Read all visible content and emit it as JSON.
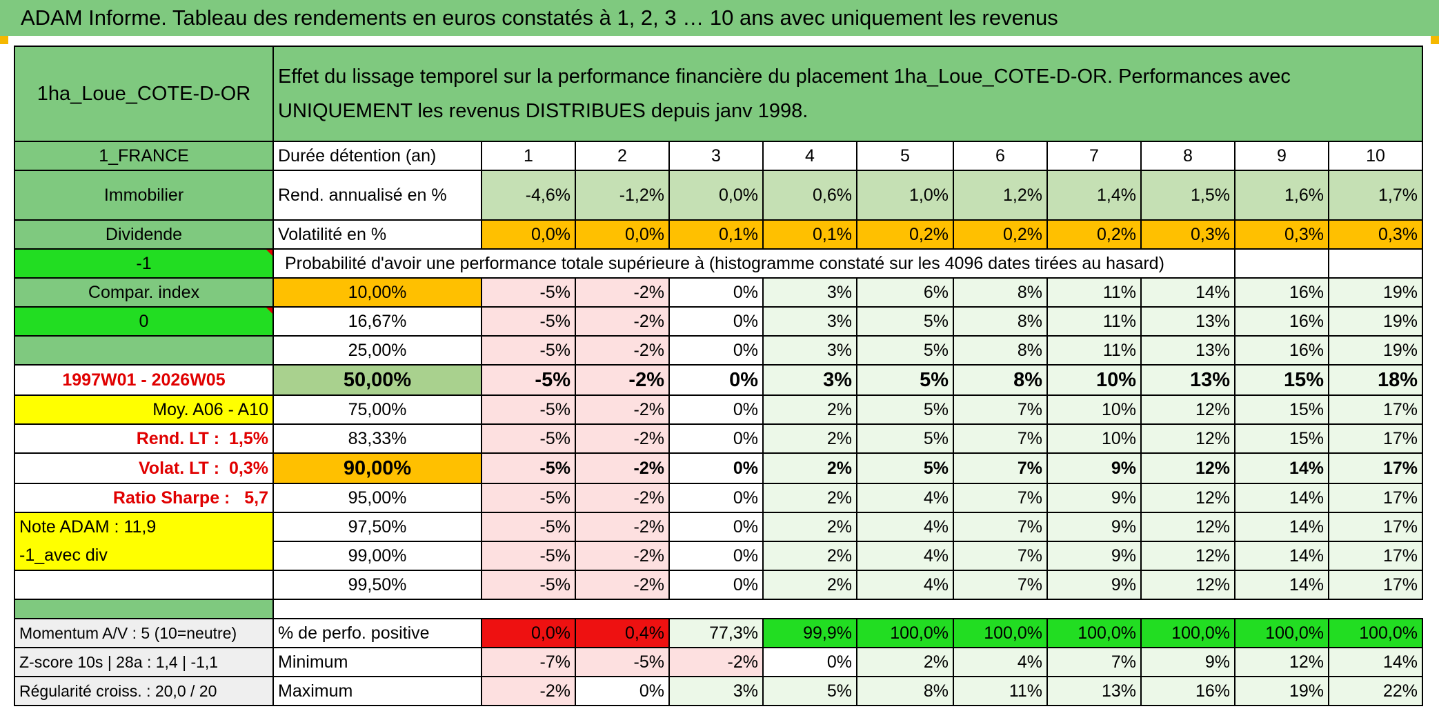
{
  "title": "ADAM Informe. Tableau des rendements en euros constatés à 1, 2, 3 … 10 ans avec uniquement les revenus",
  "left": {
    "asset_name": "1ha_Loue_COTE-D-OR",
    "country": "1_FRANCE",
    "category": "Immobilier",
    "type": "Dividende",
    "param1": "-1",
    "compar_index_label": "Compar. index",
    "param2": "0",
    "period": "1997W01 - 2026W05",
    "moy": "Moy. A06 - A10",
    "rend_lt_label": "Rend. LT :",
    "rend_lt_value": "1,5%",
    "volat_lt_label": "Volat. LT :",
    "volat_lt_value": "0,3%",
    "sharpe_label": "Ratio Sharpe :",
    "sharpe_value": "5,7",
    "note_adam": "Note ADAM : 11,9",
    "variant": "-1_avec div",
    "momentum": "Momentum A/V : 5 (10=neutre)",
    "zscore": "Z-score 10s | 28a : 1,4 | -1,1",
    "regularite": "Régularité croiss. : 20,0 / 20"
  },
  "header": {
    "description": "Effet du lissage temporel sur la performance financière du placement 1ha_Loue_COTE-D-OR. Performances avec UNIQUEMENT les revenus DISTRIBUES depuis janv 1998.",
    "duree_label": "Durée détention (an)",
    "years": [
      "1",
      "2",
      "3",
      "4",
      "5",
      "6",
      "7",
      "8",
      "9",
      "10"
    ]
  },
  "rend": {
    "label": "Rend. annualisé en %",
    "values": [
      "-4,6%",
      "-1,2%",
      "0,0%",
      "0,6%",
      "1,0%",
      "1,2%",
      "1,4%",
      "1,5%",
      "1,6%",
      "1,7%"
    ]
  },
  "volat": {
    "label": "Volatilité en %",
    "values": [
      "0,0%",
      "0,0%",
      "0,1%",
      "0,1%",
      "0,2%",
      "0,2%",
      "0,2%",
      "0,3%",
      "0,3%",
      "0,3%"
    ]
  },
  "prob_header": "Probabilité d'avoir une performance totale supérieure à (histogramme constaté sur les 4096 dates tirées au hasard)",
  "percentiles": [
    {
      "p": "10,00%",
      "values": [
        "-5%",
        "-2%",
        "0%",
        "3%",
        "6%",
        "8%",
        "11%",
        "14%",
        "16%",
        "19%"
      ]
    },
    {
      "p": "16,67%",
      "values": [
        "-5%",
        "-2%",
        "0%",
        "3%",
        "5%",
        "8%",
        "11%",
        "13%",
        "16%",
        "19%"
      ]
    },
    {
      "p": "25,00%",
      "values": [
        "-5%",
        "-2%",
        "0%",
        "3%",
        "5%",
        "8%",
        "11%",
        "13%",
        "16%",
        "19%"
      ]
    },
    {
      "p": "50,00%",
      "values": [
        "-5%",
        "-2%",
        "0%",
        "3%",
        "5%",
        "8%",
        "10%",
        "13%",
        "15%",
        "18%"
      ]
    },
    {
      "p": "75,00%",
      "values": [
        "-5%",
        "-2%",
        "0%",
        "2%",
        "5%",
        "7%",
        "10%",
        "12%",
        "15%",
        "17%"
      ]
    },
    {
      "p": "83,33%",
      "values": [
        "-5%",
        "-2%",
        "0%",
        "2%",
        "5%",
        "7%",
        "10%",
        "12%",
        "15%",
        "17%"
      ]
    },
    {
      "p": "90,00%",
      "values": [
        "-5%",
        "-2%",
        "0%",
        "2%",
        "5%",
        "7%",
        "9%",
        "12%",
        "14%",
        "17%"
      ]
    },
    {
      "p": "95,00%",
      "values": [
        "-5%",
        "-2%",
        "0%",
        "2%",
        "4%",
        "7%",
        "9%",
        "12%",
        "14%",
        "17%"
      ]
    },
    {
      "p": "97,50%",
      "values": [
        "-5%",
        "-2%",
        "0%",
        "2%",
        "4%",
        "7%",
        "9%",
        "12%",
        "14%",
        "17%"
      ]
    },
    {
      "p": "99,00%",
      "values": [
        "-5%",
        "-2%",
        "0%",
        "2%",
        "4%",
        "7%",
        "9%",
        "12%",
        "14%",
        "17%"
      ]
    },
    {
      "p": "99,50%",
      "values": [
        "-5%",
        "-2%",
        "0%",
        "2%",
        "4%",
        "7%",
        "9%",
        "12%",
        "14%",
        "17%"
      ]
    }
  ],
  "positive": {
    "label": "% de perfo. positive",
    "values": [
      "0,0%",
      "0,4%",
      "77,3%",
      "99,9%",
      "100,0%",
      "100,0%",
      "100,0%",
      "100,0%",
      "100,0%",
      "100,0%"
    ]
  },
  "minimum": {
    "label": "Minimum",
    "values": [
      "-7%",
      "-5%",
      "-2%",
      "0%",
      "2%",
      "4%",
      "7%",
      "9%",
      "12%",
      "14%"
    ]
  },
  "maximum": {
    "label": "Maximum",
    "values": [
      "-2%",
      "0%",
      "3%",
      "5%",
      "8%",
      "11%",
      "13%",
      "16%",
      "19%",
      "22%"
    ]
  },
  "colors": {
    "header_green": "#7fc97f",
    "light_green": "#c5e0b4",
    "orange": "#ffc000",
    "yellow": "#ffff00",
    "lime": "#22dd22",
    "red": "#ee1111",
    "label_red": "#e00000"
  }
}
